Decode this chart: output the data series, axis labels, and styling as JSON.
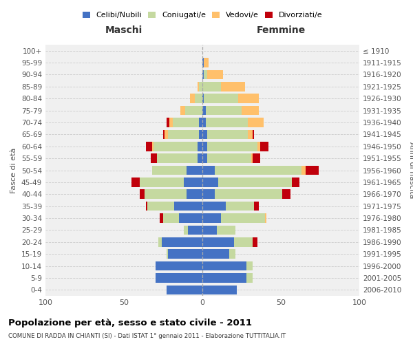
{
  "age_groups": [
    "0-4",
    "5-9",
    "10-14",
    "15-19",
    "20-24",
    "25-29",
    "30-34",
    "35-39",
    "40-44",
    "45-49",
    "50-54",
    "55-59",
    "60-64",
    "65-69",
    "70-74",
    "75-79",
    "80-84",
    "85-89",
    "90-94",
    "95-99",
    "100+"
  ],
  "birth_years": [
    "2006-2010",
    "2001-2005",
    "1996-2000",
    "1991-1995",
    "1986-1990",
    "1981-1985",
    "1976-1980",
    "1971-1975",
    "1966-1970",
    "1961-1965",
    "1956-1960",
    "1951-1955",
    "1946-1950",
    "1941-1945",
    "1936-1940",
    "1931-1935",
    "1926-1930",
    "1921-1925",
    "1916-1920",
    "1911-1915",
    "≤ 1910"
  ],
  "colors": {
    "celibi": "#4472c4",
    "coniugati": "#c5d9a0",
    "vedovi": "#ffc06b",
    "divorziati": "#c0000b"
  },
  "males": {
    "celibi": [
      23,
      30,
      30,
      22,
      26,
      9,
      15,
      18,
      10,
      12,
      10,
      3,
      3,
      2,
      2,
      0,
      0,
      0,
      0,
      0,
      0
    ],
    "coniugati": [
      0,
      0,
      0,
      1,
      2,
      3,
      10,
      17,
      27,
      28,
      22,
      26,
      28,
      20,
      17,
      11,
      5,
      2,
      0,
      0,
      0
    ],
    "vedovi": [
      0,
      0,
      0,
      0,
      0,
      0,
      0,
      0,
      0,
      0,
      0,
      0,
      1,
      2,
      2,
      3,
      3,
      1,
      0,
      0,
      0
    ],
    "divorziati": [
      0,
      0,
      0,
      0,
      0,
      0,
      2,
      1,
      3,
      5,
      0,
      4,
      4,
      1,
      2,
      0,
      0,
      0,
      0,
      0,
      0
    ]
  },
  "females": {
    "celibi": [
      22,
      28,
      28,
      17,
      20,
      9,
      12,
      15,
      8,
      10,
      8,
      3,
      3,
      3,
      2,
      2,
      1,
      0,
      1,
      1,
      0
    ],
    "coniugati": [
      0,
      4,
      4,
      4,
      12,
      12,
      28,
      18,
      43,
      47,
      55,
      28,
      32,
      26,
      27,
      23,
      22,
      12,
      2,
      0,
      0
    ],
    "vedovi": [
      0,
      0,
      0,
      0,
      0,
      0,
      1,
      0,
      0,
      0,
      3,
      1,
      2,
      3,
      10,
      11,
      13,
      15,
      10,
      3,
      0
    ],
    "divorziati": [
      0,
      0,
      0,
      0,
      3,
      0,
      0,
      3,
      5,
      5,
      8,
      5,
      5,
      1,
      0,
      0,
      0,
      0,
      0,
      0,
      0
    ]
  },
  "title": "Popolazione per età, sesso e stato civile - 2011",
  "subtitle": "COMUNE DI RADDA IN CHIANTI (SI) - Dati ISTAT 1° gennaio 2011 - Elaborazione TUTTITALIA.IT",
  "xlabel_left": "Maschi",
  "xlabel_right": "Femmine",
  "ylabel_left": "Fasce di età",
  "ylabel_right": "Anni di nascita",
  "xlim": 100,
  "legend_labels": [
    "Celibi/Nubili",
    "Coniugati/e",
    "Vedovi/e",
    "Divorziati/e"
  ],
  "bg_color": "#f0f0f0"
}
